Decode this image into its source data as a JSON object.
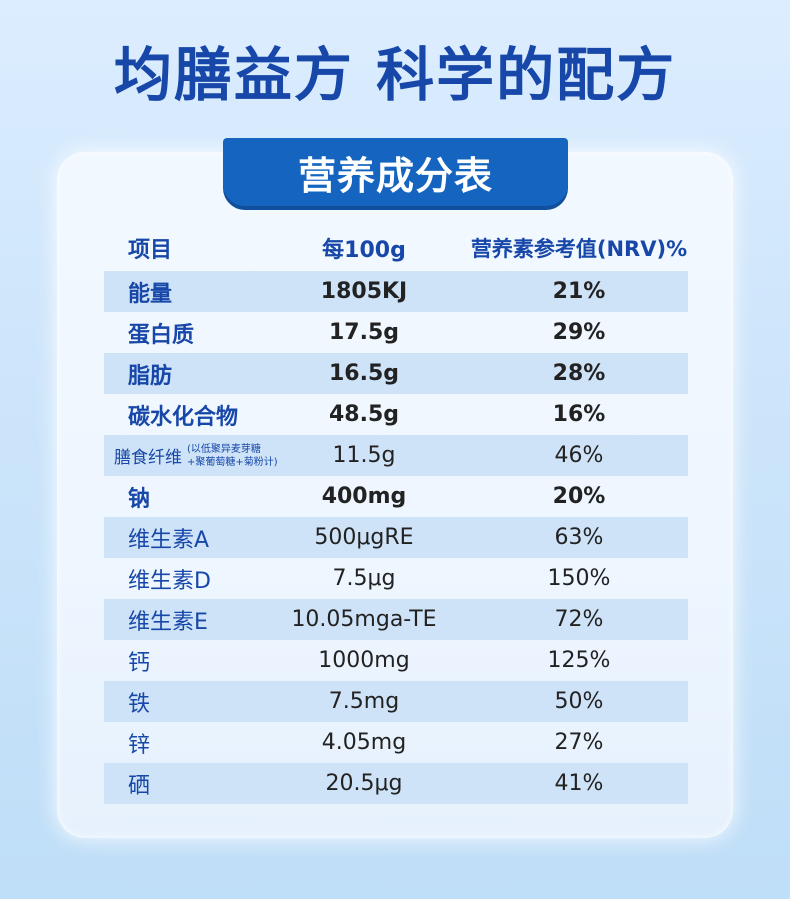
{
  "headline": "均膳益方  科学的配方",
  "tab_title": "营养成分表",
  "table": {
    "headers": [
      "项目",
      "每100g",
      "营养素参考值(NRV)%"
    ],
    "rows": [
      {
        "name": "能量",
        "per100g": "1805KJ",
        "nrv": "21%",
        "bold": true,
        "shaded": true
      },
      {
        "name": "蛋白质",
        "per100g": "17.5g",
        "nrv": "29%",
        "bold": true,
        "shaded": false
      },
      {
        "name": "脂肪",
        "per100g": "16.5g",
        "nrv": "28%",
        "bold": true,
        "shaded": true
      },
      {
        "name": "碳水化合物",
        "per100g": "48.5g",
        "nrv": "16%",
        "bold": true,
        "shaded": false
      },
      {
        "name": "膳食纤维",
        "note_line1": "(以低聚异麦芽糖",
        "note_line2": "+聚葡萄糖+菊粉计)",
        "per100g": "11.5g",
        "nrv": "46%",
        "bold": false,
        "shaded": true
      },
      {
        "name": "钠",
        "per100g": "400mg",
        "nrv": "20%",
        "bold": true,
        "shaded": false
      },
      {
        "name": "维生素A",
        "per100g": "500μgRE",
        "nrv": "63%",
        "bold": false,
        "shaded": true
      },
      {
        "name": "维生素D",
        "per100g": "7.5μg",
        "nrv": "150%",
        "bold": false,
        "shaded": false
      },
      {
        "name": "维生素E",
        "per100g": "10.05mga-TE",
        "nrv": "72%",
        "bold": false,
        "shaded": true
      },
      {
        "name": "钙",
        "per100g": "1000mg",
        "nrv": "125%",
        "bold": false,
        "shaded": false
      },
      {
        "name": "铁",
        "per100g": "7.5mg",
        "nrv": "50%",
        "bold": false,
        "shaded": true
      },
      {
        "name": "锌",
        "per100g": "4.05mg",
        "nrv": "27%",
        "bold": false,
        "shaded": false
      },
      {
        "name": "硒",
        "per100g": "20.5μg",
        "nrv": "41%",
        "bold": false,
        "shaded": true
      }
    ]
  },
  "colors": {
    "brand_blue": "#1747a8",
    "tab_blue": "#1565c0",
    "row_shade": "#cfe3f8"
  }
}
